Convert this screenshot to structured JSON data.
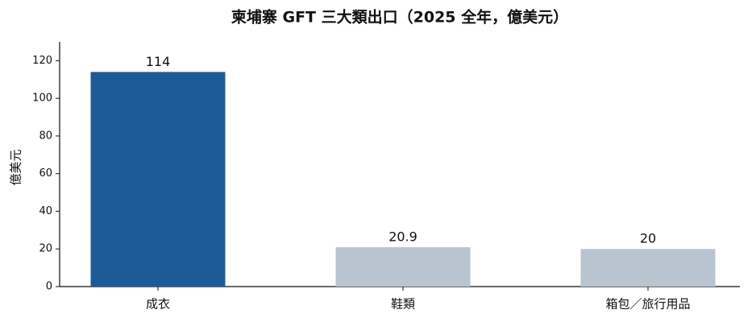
{
  "chart_data": {
    "type": "bar",
    "title": "柬埔寨 GFT 三大類出口（2025 全年，億美元）",
    "y_label": "億美元",
    "categories": [
      "成衣",
      "鞋類",
      "箱包／旅行用品"
    ],
    "values": [
      114,
      20.9,
      20
    ],
    "colors": [
      "#1f5a98",
      "#b8c4d0",
      "#b8c4d0"
    ],
    "ylim": [
      0,
      130
    ],
    "yticks": [
      0,
      20,
      40,
      60,
      80,
      100,
      120
    ],
    "grid": false
  }
}
